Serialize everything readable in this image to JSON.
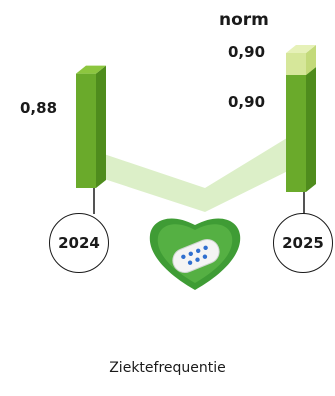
{
  "chart_data": {
    "type": "bar",
    "title": "Ziektefrequentie",
    "categories": [
      "2024",
      "2025"
    ],
    "series": [
      {
        "values": [
          0.88,
          0.9
        ]
      }
    ],
    "norm": {
      "label": "norm",
      "value": 0.9,
      "category": "2025"
    },
    "value_labels": [
      "0,88",
      "0,90"
    ],
    "norm_value_label": "0,90",
    "colors": {
      "bar": "#6aaa2b",
      "bar_dark": "#4f8c1d",
      "bar_top": "#8cc63f",
      "norm": "#d6e79a",
      "path": "#dcefc8",
      "heart": "#3f9c35",
      "pill_dots": "#2f6fcf"
    },
    "icon": "heart-with-pill-icon"
  }
}
